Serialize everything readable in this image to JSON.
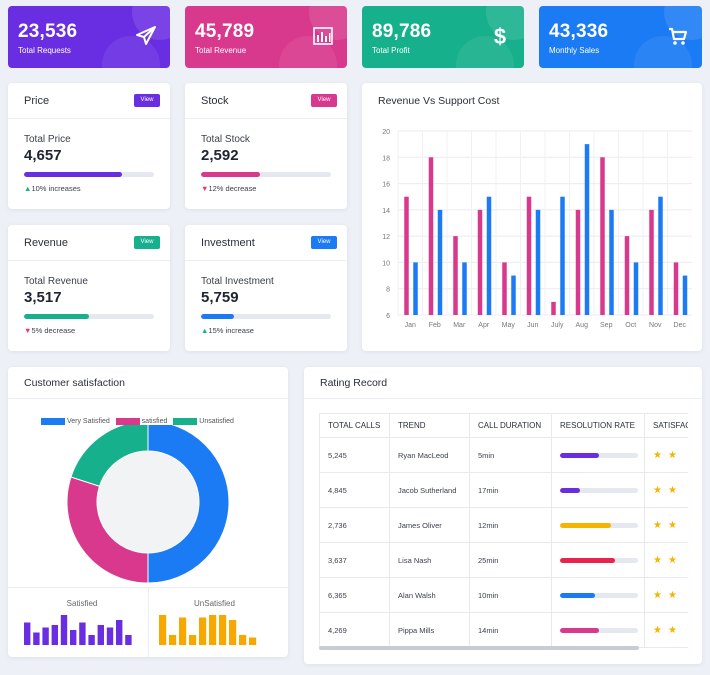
{
  "stats": [
    {
      "value": "23,536",
      "label": "Total Requests",
      "color": "#6a2ee2",
      "icon": "paper-plane-icon"
    },
    {
      "value": "45,789",
      "label": "Total Revenue",
      "color": "#d9398d",
      "icon": "bar-chart-icon"
    },
    {
      "value": "89,786",
      "label": "Total Profit",
      "color": "#17b08c",
      "icon": "dollar-icon"
    },
    {
      "value": "43,336",
      "label": "Monthly Sales",
      "color": "#1b7bf4",
      "icon": "cart-icon"
    }
  ],
  "metrics": [
    {
      "title": "Price",
      "view": "View",
      "label": "Total Price",
      "value": "4,657",
      "progress": 0.75,
      "color": "#6a2ee2",
      "change": "10% increases",
      "dir": "up"
    },
    {
      "title": "Stock",
      "view": "View",
      "label": "Total Stock",
      "value": "2,592",
      "progress": 0.45,
      "color": "#d9398d",
      "change": "12% decrease",
      "dir": "down"
    },
    {
      "title": "Revenue",
      "view": "View",
      "label": "Total Revenue",
      "value": "3,517",
      "progress": 0.5,
      "color": "#17b08c",
      "change": "5% decrease",
      "dir": "down"
    },
    {
      "title": "Investment",
      "view": "View",
      "label": "Total Investment",
      "value": "5,759",
      "progress": 0.25,
      "color": "#1b7bf4",
      "change": "15% increase",
      "dir": "up"
    }
  ],
  "revenue_card": {
    "title": "Revenue Vs Support Cost"
  },
  "satisfaction_card": {
    "title": "Customer satisfaction",
    "legend": [
      "Very Satisfied",
      "satisfied",
      "Unsatisfied"
    ],
    "mini_labels": [
      "Satisfied",
      "UnSatisfied"
    ]
  },
  "rating_card": {
    "title": "Rating Record",
    "columns": [
      "TOTAL CALLS",
      "TREND",
      "CALL DURATION",
      "RESOLUTION RATE",
      "SATISFACTION"
    ],
    "rows": [
      {
        "calls": "5,245",
        "name": "Ryan MacLeod",
        "duration": "5min",
        "rate": 0.5,
        "color": "#6a2ee2",
        "stars": 2
      },
      {
        "calls": "4,845",
        "name": "Jacob Sutherland",
        "duration": "17min",
        "rate": 0.25,
        "color": "#6a2ee2",
        "stars": 2
      },
      {
        "calls": "2,736",
        "name": "James Oliver",
        "duration": "12min",
        "rate": 0.65,
        "color": "#f4b400",
        "stars": 2
      },
      {
        "calls": "3,637",
        "name": "Lisa Nash",
        "duration": "25min",
        "rate": 0.7,
        "color": "#e8234d",
        "stars": 2
      },
      {
        "calls": "6,365",
        "name": "Alan Walsh",
        "duration": "10min",
        "rate": 0.45,
        "color": "#1b7bf4",
        "stars": 2
      },
      {
        "calls": "4,269",
        "name": "Pippa Mills",
        "duration": "14min",
        "rate": 0.5,
        "color": "#d9398d",
        "stars": 2
      }
    ]
  },
  "colors": {
    "blue": "#1b7bf4",
    "pink": "#d9398d",
    "teal": "#17b08c",
    "purple": "#6a2ee2",
    "orange": "#f6a700"
  },
  "chart_data": [
    {
      "type": "bar",
      "title": "Revenue Vs Support Cost",
      "categories": [
        "Jan",
        "Feb",
        "Mar",
        "Apr",
        "May",
        "Jun",
        "July",
        "Aug",
        "Sep",
        "Oct",
        "Nov",
        "Dec"
      ],
      "series": [
        {
          "values": [
            15,
            18,
            12,
            14,
            10,
            15,
            7,
            14,
            18,
            12,
            14,
            10
          ]
        },
        {
          "values": [
            10,
            14,
            10,
            15,
            9,
            14,
            15,
            19,
            14,
            10,
            15,
            9
          ]
        }
      ],
      "ylim": [
        6,
        20
      ],
      "yticks": [
        6,
        8,
        10,
        12,
        14,
        16,
        18,
        20
      ],
      "grid": true
    },
    {
      "type": "pie",
      "legend_position": "top",
      "categories": [
        "Very Satisfied",
        "satisfied",
        "Unsatisfied"
      ],
      "values": [
        50,
        30,
        20
      ]
    },
    {
      "type": "bar",
      "title": "Satisfied",
      "values": [
        9,
        5,
        7,
        8,
        12,
        6,
        9,
        4,
        8,
        7,
        10,
        4
      ]
    },
    {
      "type": "bar",
      "title": "UnSatisfied",
      "values": [
        12,
        4,
        11,
        4,
        11,
        12,
        12,
        10,
        4,
        3
      ]
    }
  ]
}
